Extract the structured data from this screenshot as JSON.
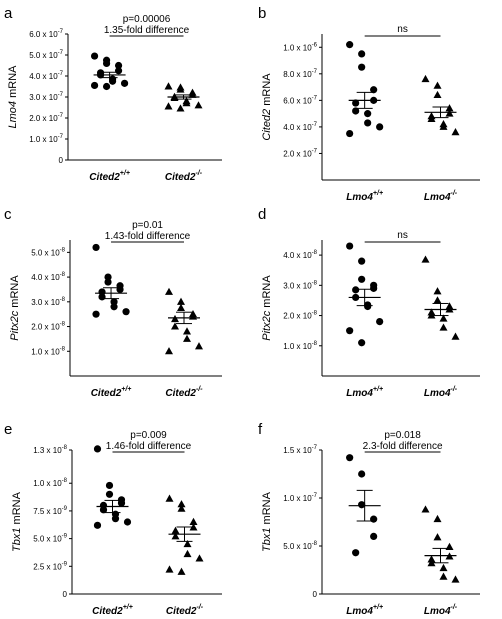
{
  "figure": {
    "panel_count": 6
  },
  "chart_data": [
    {
      "panel": "a",
      "type": "scatter",
      "ylabel": {
        "gene": "Lmo4",
        "suffix": " mRNA"
      },
      "ylim": [
        0,
        6e-07
      ],
      "yticks": [
        0,
        1e-07,
        2e-07,
        3e-07,
        4e-07,
        5e-07,
        6e-07
      ],
      "ytick_labels": [
        "0",
        "1.0 x 10",
        "2.0 x 10",
        "3.0 x 10",
        "4.0 x 10",
        "5.0 x 10",
        "6.0 x 10"
      ],
      "ytick_exponent": "-7",
      "categories": [
        {
          "gene": "Cited2",
          "genotype": "+/+"
        },
        {
          "gene": "Cited2",
          "genotype": "-/-"
        }
      ],
      "series": [
        {
          "marker": "circle",
          "values": [
            4.95e-07,
            4.75e-07,
            4.6e-07,
            4.5e-07,
            4.25e-07,
            4.15e-07,
            4.05e-07,
            3.85e-07,
            3.75e-07,
            3.65e-07,
            3.55e-07,
            3.5e-07
          ],
          "mean": 4.05e-07,
          "sem": 1.3e-08
        },
        {
          "marker": "triangle",
          "values": [
            3.5e-07,
            3.45e-07,
            3.35e-07,
            3.2e-07,
            3.1e-07,
            3e-07,
            2.95e-07,
            2.8e-07,
            2.7e-07,
            2.6e-07,
            2.55e-07,
            2.45e-07
          ],
          "mean": 3e-07,
          "sem": 1e-08
        }
      ],
      "annotations": [
        "p=0.00006",
        "1.35-fold difference"
      ]
    },
    {
      "panel": "b",
      "type": "scatter",
      "ylabel": {
        "gene": "Cited2",
        "suffix": " mRNA"
      },
      "ylim": [
        0,
        1.1e-06
      ],
      "yticks": [
        2e-07,
        4e-07,
        6e-07,
        8e-07,
        1e-06
      ],
      "ytick_labels": [
        "2.0 x 10",
        "4.0 x 10",
        "6.0 x 10",
        "8.0 x 10",
        "1.0 x 10"
      ],
      "ytick_exponents": [
        "-7",
        "-7",
        "-7",
        "-7",
        "-6"
      ],
      "categories": [
        {
          "gene": "Lmo4",
          "genotype": "+/+"
        },
        {
          "gene": "Lmo4",
          "genotype": "-/-"
        }
      ],
      "series": [
        {
          "marker": "circle",
          "values": [
            1.02e-06,
            9.5e-07,
            8.5e-07,
            6.8e-07,
            6e-07,
            5.8e-07,
            5.2e-07,
            5e-07,
            4.3e-07,
            4e-07,
            3.5e-07
          ],
          "mean": 6e-07,
          "sem": 6e-08
        },
        {
          "marker": "triangle",
          "values": [
            7.6e-07,
            7.1e-07,
            6.4e-07,
            5.4e-07,
            5e-07,
            4.8e-07,
            4.6e-07,
            4.2e-07,
            4e-07,
            3.6e-07
          ],
          "mean": 5.1e-07,
          "sem": 4e-08
        }
      ],
      "annotations": [
        "ns"
      ]
    },
    {
      "panel": "c",
      "type": "scatter",
      "ylabel": {
        "gene": "Pitx2c",
        "suffix": " mRNA"
      },
      "ylim": [
        0,
        5.5e-08
      ],
      "yticks": [
        1e-08,
        2e-08,
        3e-08,
        4e-08,
        5e-08
      ],
      "ytick_labels": [
        "1.0 x 10",
        "2.0 x 10",
        "3.0 x 10",
        "4.0 x 10",
        "5.0 x 10"
      ],
      "ytick_exponent": "-8",
      "categories": [
        {
          "gene": "Cited2",
          "genotype": "+/+"
        },
        {
          "gene": "Cited2",
          "genotype": "-/-"
        }
      ],
      "series": [
        {
          "marker": "circle",
          "values": [
            5.2e-08,
            4e-08,
            3.8e-08,
            3.65e-08,
            3.5e-08,
            3.4e-08,
            3.2e-08,
            3e-08,
            2.8e-08,
            2.6e-08,
            2.5e-08
          ],
          "mean": 3.35e-08,
          "sem": 2.2e-09
        },
        {
          "marker": "triangle",
          "values": [
            3.4e-08,
            3e-08,
            2.75e-08,
            2.5e-08,
            2.4e-08,
            2.3e-08,
            2e-08,
            1.8e-08,
            1.5e-08,
            1.2e-08,
            1e-08
          ],
          "mean": 2.35e-08,
          "sem": 2.3e-09
        }
      ],
      "annotations": [
        "p=0.01",
        "1.43-fold difference"
      ]
    },
    {
      "panel": "d",
      "type": "scatter",
      "ylabel": {
        "gene": "Pitx2c",
        "suffix": " mRNA"
      },
      "ylim": [
        0,
        4.5e-08
      ],
      "yticks": [
        1e-08,
        2e-08,
        3e-08,
        4e-08
      ],
      "ytick_labels": [
        "1.0 x 10",
        "2.0 x 10",
        "3.0 x 10",
        "4.0 x 10"
      ],
      "ytick_exponent": "-8",
      "categories": [
        {
          "gene": "Lmo4",
          "genotype": "+/+"
        },
        {
          "gene": "Lmo4",
          "genotype": "-/-"
        }
      ],
      "series": [
        {
          "marker": "circle",
          "values": [
            4.3e-08,
            3.8e-08,
            3.2e-08,
            3e-08,
            2.9e-08,
            2.85e-08,
            2.6e-08,
            2.35e-08,
            2.3e-08,
            1.8e-08,
            1.5e-08,
            1.1e-08
          ],
          "mean": 2.6e-08,
          "sem": 2.7e-09
        },
        {
          "marker": "triangle",
          "values": [
            3.85e-08,
            2.8e-08,
            2.5e-08,
            2.3e-08,
            2.2e-08,
            2.1e-08,
            2e-08,
            1.9e-08,
            1.6e-08,
            1.3e-08
          ],
          "mean": 2.2e-08,
          "sem": 2e-09
        }
      ],
      "annotations": [
        "ns"
      ]
    },
    {
      "panel": "e",
      "type": "scatter",
      "ylabel": {
        "gene": "Tbx1",
        "suffix": " mRNA"
      },
      "ylim": [
        0,
        1.3e-08
      ],
      "yticks": [
        0,
        2.5e-09,
        5e-09,
        7.5e-09,
        1e-08,
        1.3e-08
      ],
      "ytick_labels": [
        "0",
        "2.5 x 10",
        "5.0 x 10",
        "7.5 x 10",
        "1.0 x 10",
        "1.3 x 10"
      ],
      "ytick_exponents": [
        "",
        "-9",
        "-9",
        "-9",
        "-8",
        "-8"
      ],
      "categories": [
        {
          "gene": "Cited2",
          "genotype": "+/+"
        },
        {
          "gene": "Cited2",
          "genotype": "-/-"
        }
      ],
      "series": [
        {
          "marker": "circle",
          "values": [
            1.31e-08,
            9.8e-09,
            9e-09,
            8.5e-09,
            8.2e-09,
            8e-09,
            7.6e-09,
            7.2e-09,
            6.8e-09,
            6.5e-09,
            6.2e-09
          ],
          "mean": 7.9e-09,
          "sem": 5.5e-10
        },
        {
          "marker": "triangle",
          "values": [
            8.6e-09,
            8.1e-09,
            7.7e-09,
            6.5e-09,
            6e-09,
            5.7e-09,
            5.2e-09,
            4.5e-09,
            3.6e-09,
            3.2e-09,
            2.2e-09,
            2e-09
          ],
          "mean": 5.4e-09,
          "sem": 6.5e-10
        }
      ],
      "annotations": [
        "p=0.009",
        "1.46-fold difference"
      ]
    },
    {
      "panel": "f",
      "type": "scatter",
      "ylabel": {
        "gene": "Tbx1",
        "suffix": " mRNA"
      },
      "ylim": [
        0,
        1.5e-07
      ],
      "yticks": [
        0,
        5e-08,
        1e-07,
        1.5e-07
      ],
      "ytick_labels": [
        "0",
        "5.0 x 10",
        "1.0 x 10",
        "1.5 x 10"
      ],
      "ytick_exponents": [
        "",
        "-8",
        "-7",
        "-7"
      ],
      "categories": [
        {
          "gene": "Lmo4",
          "genotype": "+/+"
        },
        {
          "gene": "Lmo4",
          "genotype": "-/-"
        }
      ],
      "series": [
        {
          "marker": "circle",
          "values": [
            1.42e-07,
            1.25e-07,
            9.3e-08,
            7.8e-08,
            6e-08,
            4.3e-08
          ],
          "mean": 9.2e-08,
          "sem": 1.6e-08
        },
        {
          "marker": "triangle",
          "values": [
            8.8e-08,
            7.8e-08,
            5.9e-08,
            4.9e-08,
            3.9e-08,
            3.6e-08,
            3.2e-08,
            2.7e-08,
            1.8e-08,
            1.5e-08
          ],
          "mean": 4e-08,
          "sem": 7.5e-09
        }
      ],
      "annotations": [
        "p=0.018",
        "2.3-fold difference"
      ]
    }
  ]
}
